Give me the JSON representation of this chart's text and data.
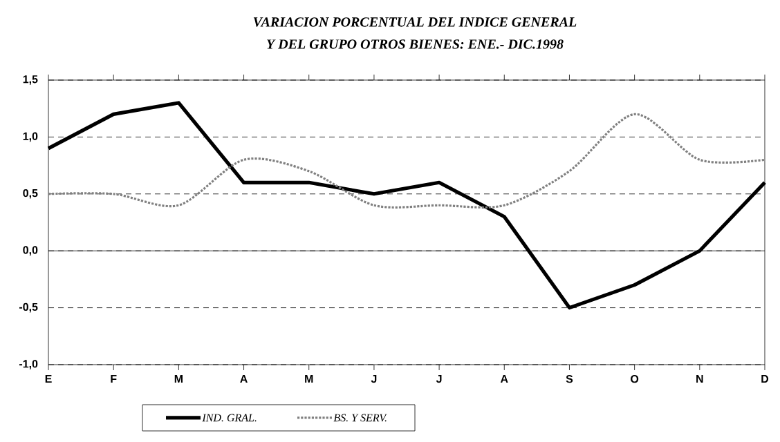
{
  "chart_data": {
    "type": "line",
    "title": "VARIACION PORCENTUAL DEL INDICE GENERAL",
    "subtitle": "Y DEL GRUPO OTROS BIENES: ENE.- DIC.1998",
    "categories": [
      "E",
      "F",
      "M",
      "A",
      "M",
      "J",
      "J",
      "A",
      "S",
      "O",
      "N",
      "D"
    ],
    "series": [
      {
        "name": "IND. GRAL.",
        "color": "#000000",
        "values": [
          0.9,
          1.2,
          1.3,
          0.6,
          0.6,
          0.5,
          0.6,
          0.3,
          -0.5,
          -0.3,
          0.0,
          0.6
        ]
      },
      {
        "name": "BS. Y SERV.",
        "color": "#808080",
        "line_style": "dotted",
        "values": [
          0.5,
          0.5,
          0.4,
          0.8,
          0.7,
          0.4,
          0.4,
          0.4,
          0.7,
          1.2,
          0.8,
          0.8
        ]
      }
    ],
    "ylim": [
      -1.0,
      1.5
    ],
    "yticks": [
      {
        "value": -1.0,
        "label": "-1,0"
      },
      {
        "value": -0.5,
        "label": "-0,5"
      },
      {
        "value": 0.0,
        "label": "0,0"
      },
      {
        "value": 0.5,
        "label": "0,5"
      },
      {
        "value": 1.0,
        "label": "1,0"
      },
      {
        "value": 1.5,
        "label": "1,5"
      }
    ],
    "ref_lines": [
      {
        "axis": "y",
        "value": 0.0
      }
    ],
    "grid": "y",
    "legend": "bottom",
    "marker": "none"
  }
}
